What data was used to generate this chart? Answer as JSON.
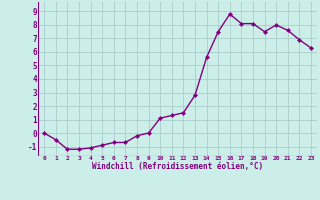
{
  "x": [
    0,
    1,
    2,
    3,
    4,
    5,
    6,
    7,
    8,
    9,
    10,
    11,
    12,
    13,
    14,
    15,
    16,
    17,
    18,
    19,
    20,
    21,
    22,
    23
  ],
  "y": [
    0.0,
    -0.5,
    -1.2,
    -1.2,
    -1.1,
    -0.9,
    -0.7,
    -0.7,
    -0.2,
    0.0,
    1.1,
    1.3,
    1.5,
    2.8,
    5.6,
    7.5,
    8.8,
    8.1,
    8.1,
    7.5,
    8.0,
    7.6,
    6.9,
    6.3
  ],
  "line_color": "#800080",
  "marker": "D",
  "marker_size": 2.0,
  "linewidth": 1.0,
  "bg_color": "#cceee8",
  "grid_color": "#aacccc",
  "xlabel": "Windchill (Refroidissement éolien,°C)",
  "xlabel_color": "#800080",
  "tick_color": "#800080",
  "label_color": "#800080",
  "xlim": [
    -0.5,
    23.5
  ],
  "ylim": [
    -1.7,
    9.7
  ],
  "yticks": [
    -1,
    0,
    1,
    2,
    3,
    4,
    5,
    6,
    7,
    8,
    9
  ],
  "xticks": [
    0,
    1,
    2,
    3,
    4,
    5,
    6,
    7,
    8,
    9,
    10,
    11,
    12,
    13,
    14,
    15,
    16,
    17,
    18,
    19,
    20,
    21,
    22,
    23
  ]
}
